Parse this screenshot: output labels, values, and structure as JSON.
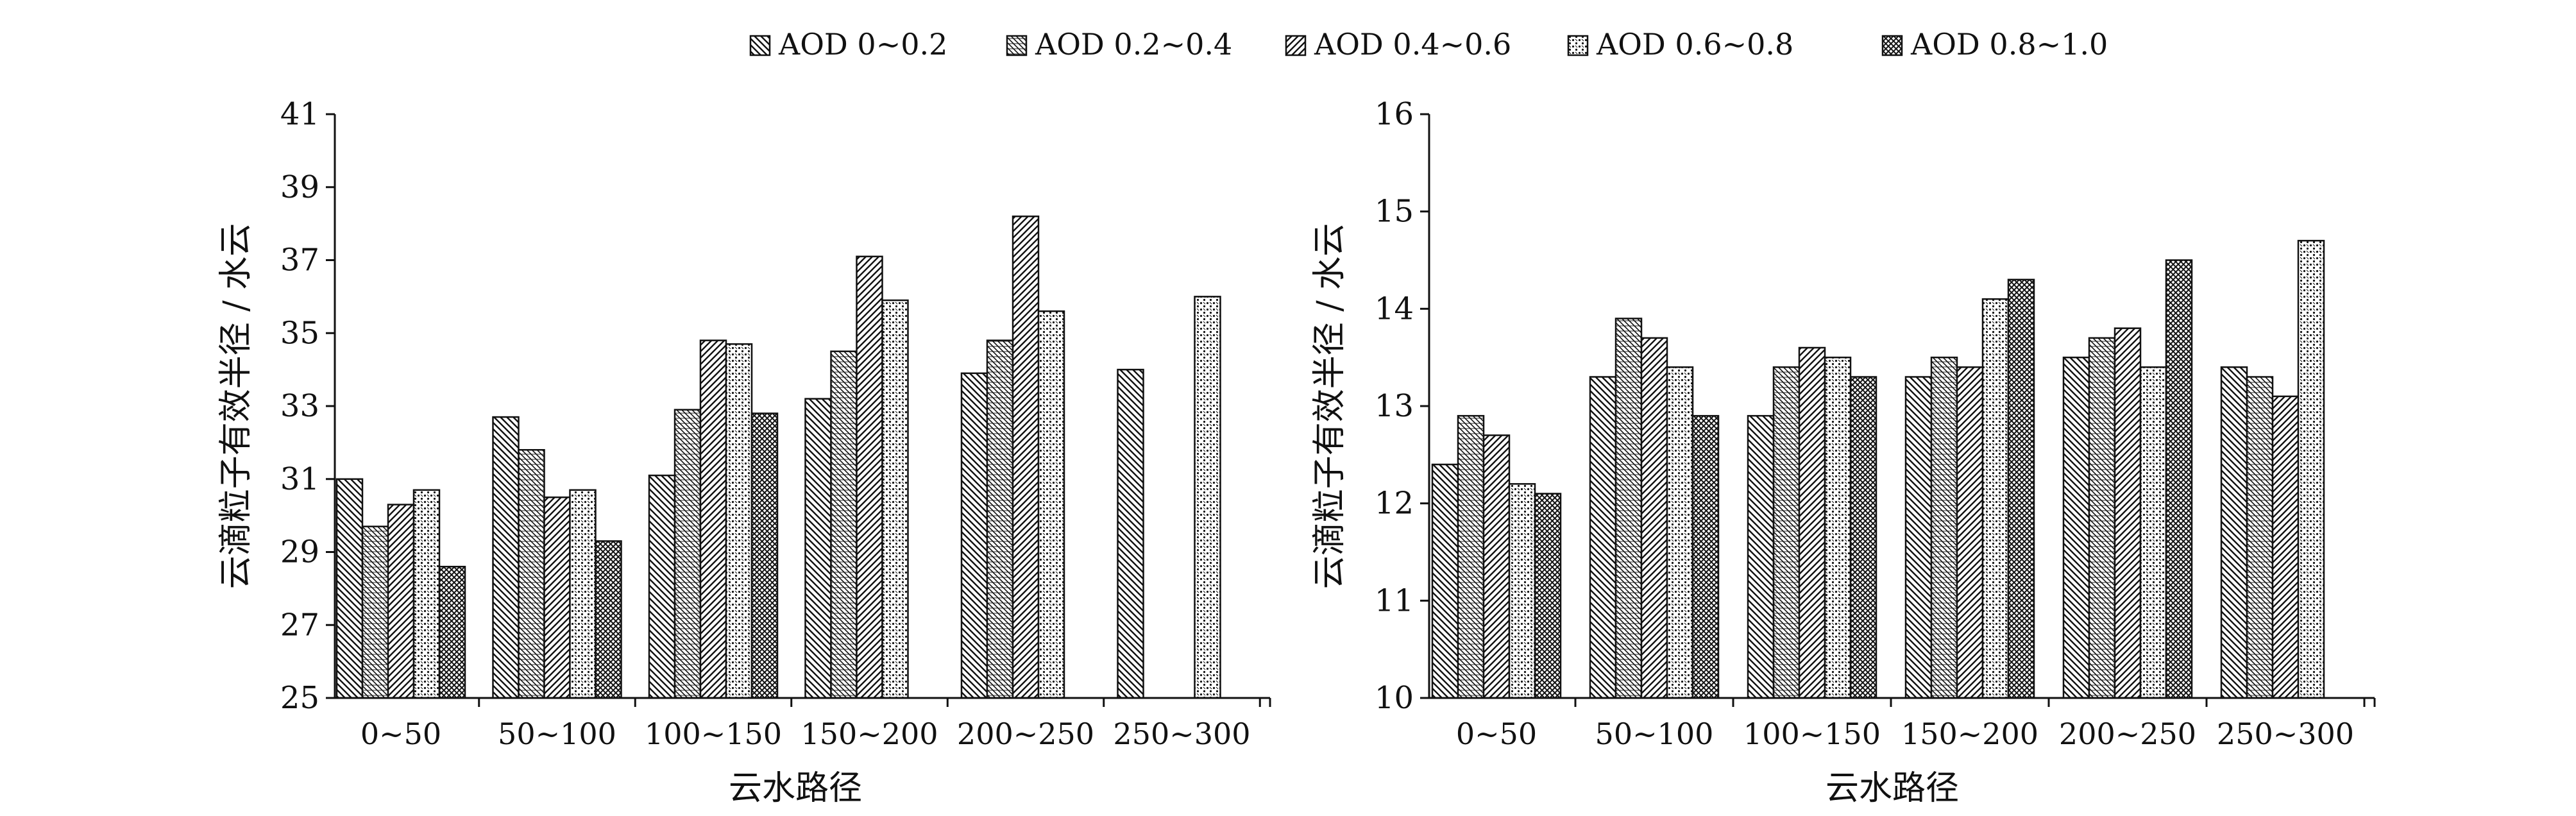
{
  "legend": {
    "entries": [
      "AOD 0~0.2",
      "AOD 0.2~0.4",
      "AOD 0.4~0.6",
      "AOD 0.6~0.8",
      "AOD 0.8~1.0"
    ],
    "patterns": [
      "diag-back",
      "hatch-dense-left",
      "diag-fwd",
      "dots",
      "cross-hatch"
    ]
  },
  "colors": {
    "ink": "#111111",
    "background": "#ffffff"
  },
  "chart_data": [
    {
      "type": "bar",
      "title": "",
      "xlabel": "云水路径",
      "ylabel": "云滴粒子有效半径 / 水云",
      "ylim": [
        25,
        41
      ],
      "yticks": [
        25,
        27,
        29,
        31,
        33,
        35,
        37,
        39,
        41
      ],
      "categories": [
        "0~50",
        "50~100",
        "100~150",
        "150~200",
        "200~250",
        "250~300"
      ],
      "series": [
        {
          "name": "AOD 0~0.2",
          "values": [
            31.0,
            32.7,
            31.1,
            33.2,
            33.9,
            34.0
          ]
        },
        {
          "name": "AOD 0.2~0.4",
          "values": [
            29.7,
            31.8,
            32.9,
            34.5,
            34.8,
            null
          ]
        },
        {
          "name": "AOD 0.4~0.6",
          "values": [
            30.3,
            30.5,
            34.8,
            37.1,
            38.2,
            null
          ]
        },
        {
          "name": "AOD 0.6~0.8",
          "values": [
            30.7,
            30.7,
            34.7,
            35.9,
            35.6,
            36.0
          ]
        },
        {
          "name": "AOD 0.8~1.0",
          "values": [
            28.6,
            29.3,
            32.8,
            null,
            null,
            null
          ]
        }
      ]
    },
    {
      "type": "bar",
      "title": "",
      "xlabel": "云水路径",
      "ylabel": "云滴粒子有效半径 / 水云",
      "ylim": [
        10,
        16
      ],
      "yticks": [
        10,
        11,
        12,
        13,
        14,
        15,
        16
      ],
      "categories": [
        "0~50",
        "50~100",
        "100~150",
        "150~200",
        "200~250",
        "250~300"
      ],
      "series": [
        {
          "name": "AOD 0~0.2",
          "values": [
            12.4,
            13.3,
            12.9,
            13.3,
            13.5,
            13.4
          ]
        },
        {
          "name": "AOD 0.2~0.4",
          "values": [
            12.9,
            13.9,
            13.4,
            13.5,
            13.7,
            13.3
          ]
        },
        {
          "name": "AOD 0.4~0.6",
          "values": [
            12.7,
            13.7,
            13.6,
            13.4,
            13.8,
            13.1
          ]
        },
        {
          "name": "AOD 0.6~0.8",
          "values": [
            12.2,
            13.4,
            13.5,
            14.1,
            13.4,
            14.7
          ]
        },
        {
          "name": "AOD 0.8~1.0",
          "values": [
            12.1,
            12.9,
            13.3,
            14.3,
            14.5,
            null
          ]
        }
      ]
    }
  ]
}
